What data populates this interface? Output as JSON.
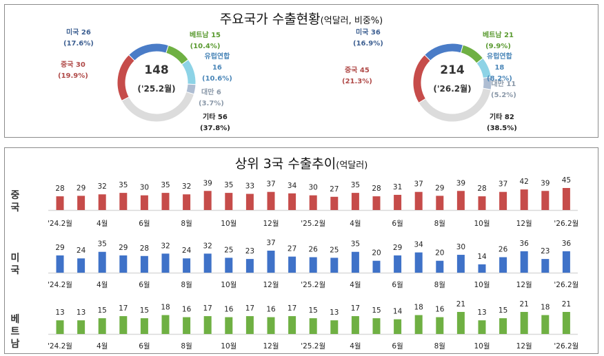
{
  "chart_data": [
    {
      "type": "pie",
      "variant": "donut",
      "title": "주요국가 수출현황",
      "title_unit": "(억달러, 비중%)",
      "center_value": "148",
      "center_label": "('25.2월)",
      "slices": [
        {
          "name": "미국",
          "value": 26,
          "pct": "(17.6%)",
          "color": "#4a7cc7",
          "text_color": "#3d5f91"
        },
        {
          "name": "베트남",
          "value": 15,
          "pct": "(10.4%)",
          "color": "#6fb043",
          "text_color": "#5a9a30"
        },
        {
          "name": "유럽연합",
          "value": 16,
          "pct": "(10.6%)",
          "color": "#8dd3e6",
          "text_color": "#4a86b8"
        },
        {
          "name": "대만",
          "value": 6,
          "pct": "(3.7%)",
          "color": "#aebdd2",
          "text_color": "#8a98a8"
        },
        {
          "name": "기타",
          "value": 56,
          "pct": "(37.8%)",
          "color": "#dcdcdc",
          "text_color": "#222"
        },
        {
          "name": "중국",
          "value": 30,
          "pct": "(19.9%)",
          "color": "#c64c4a",
          "text_color": "#b04a48"
        }
      ]
    },
    {
      "type": "pie",
      "variant": "donut",
      "center_value": "214",
      "center_label": "('26.2월)",
      "slices": [
        {
          "name": "미국",
          "value": 36,
          "pct": "(16.9%)",
          "color": "#4a7cc7",
          "text_color": "#3d5f91"
        },
        {
          "name": "베트남",
          "value": 21,
          "pct": "(9.9%)",
          "color": "#6fb043",
          "text_color": "#5a9a30"
        },
        {
          "name": "유럽연합",
          "value": 18,
          "pct": "(8.2%)",
          "color": "#8dd3e6",
          "text_color": "#4a86b8"
        },
        {
          "name": "대만",
          "value": 11,
          "pct": "(5.2%)",
          "color": "#aebdd2",
          "text_color": "#8a98a8"
        },
        {
          "name": "기타",
          "value": 82,
          "pct": "(38.5%)",
          "color": "#dcdcdc",
          "text_color": "#222"
        },
        {
          "name": "중국",
          "value": 45,
          "pct": "(21.3%)",
          "color": "#c64c4a",
          "text_color": "#b04a48"
        }
      ]
    },
    {
      "type": "bar",
      "title": "상위 3국 수출추이",
      "title_unit": "(억달러)",
      "x_tick_labels": [
        "'24.2월",
        "4월",
        "6월",
        "8월",
        "10월",
        "12월",
        "'25.2월",
        "4월",
        "6월",
        "8월",
        "10월",
        "12월",
        "'26.2월"
      ],
      "series": [
        {
          "name": "중국",
          "color": "#c64c4a",
          "values": [
            28,
            29,
            32,
            35,
            30,
            35,
            32,
            39,
            35,
            33,
            37,
            34,
            30,
            27,
            35,
            28,
            31,
            37,
            29,
            39,
            28,
            37,
            42,
            39,
            45
          ]
        },
        {
          "name": "미국",
          "color": "#3f72c8",
          "values": [
            29,
            24,
            35,
            29,
            28,
            32,
            24,
            32,
            25,
            23,
            37,
            27,
            26,
            25,
            35,
            20,
            29,
            34,
            20,
            30,
            14,
            26,
            36,
            23,
            36
          ]
        },
        {
          "name": "베트남",
          "color": "#6fb043",
          "values": [
            13,
            13,
            15,
            17,
            15,
            18,
            16,
            17,
            16,
            17,
            16,
            17,
            15,
            13,
            17,
            15,
            14,
            18,
            16,
            21,
            13,
            15,
            21,
            18,
            21
          ]
        }
      ]
    }
  ]
}
